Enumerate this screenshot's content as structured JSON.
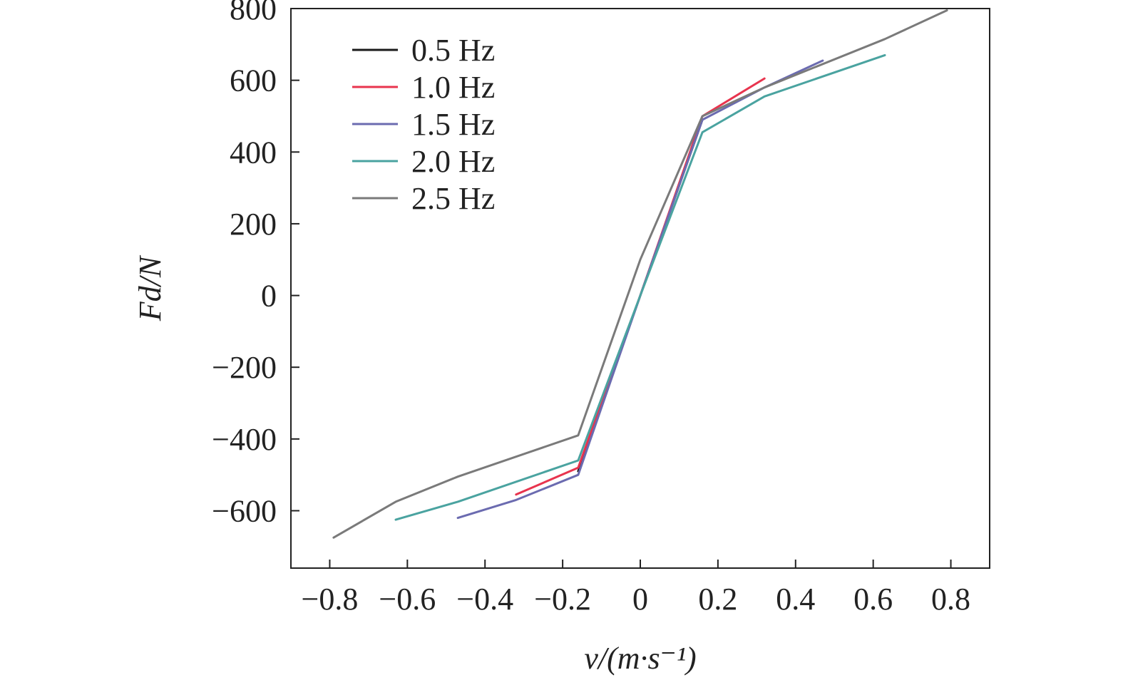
{
  "chart_data": {
    "type": "line",
    "title": "",
    "xlabel": "v/(m·s⁻¹)",
    "ylabel": "Fd/N",
    "xlim": [
      -0.9,
      0.9
    ],
    "ylim": [
      -760,
      800
    ],
    "xticks": [
      -0.8,
      -0.6,
      -0.4,
      -0.2,
      0,
      0.2,
      0.4,
      0.6,
      0.8
    ],
    "xtick_labels": [
      "−0.8",
      "−0.6",
      "−0.4",
      "−0.2",
      "0",
      "0.2",
      "0.4",
      "0.6",
      "0.8"
    ],
    "yticks": [
      -600,
      -400,
      -200,
      0,
      200,
      400,
      600,
      800
    ],
    "ytick_labels": [
      "−600",
      "−400",
      "−200",
      "0",
      "200",
      "400",
      "600",
      "800"
    ],
    "grid": false,
    "legend_position": "top-left",
    "series": [
      {
        "name": "0.5 Hz",
        "color": "#1a1a1a",
        "x": [
          -0.16,
          0.0,
          0.16
        ],
        "y": [
          -490,
          0,
          490
        ]
      },
      {
        "name": "1.0 Hz",
        "color": "#e8344e",
        "x": [
          -0.32,
          -0.16,
          0.0,
          0.16,
          0.32
        ],
        "y": [
          -555,
          -480,
          0,
          500,
          605
        ]
      },
      {
        "name": "1.5 Hz",
        "color": "#6b6bb0",
        "x": [
          -0.47,
          -0.32,
          -0.16,
          0.0,
          0.16,
          0.32,
          0.47
        ],
        "y": [
          -620,
          -570,
          -500,
          0,
          490,
          580,
          655
        ]
      },
      {
        "name": "2.0 Hz",
        "color": "#4aa3a0",
        "x": [
          -0.63,
          -0.47,
          -0.16,
          0.0,
          0.16,
          0.32,
          0.63
        ],
        "y": [
          -625,
          -575,
          -460,
          0,
          455,
          555,
          670
        ]
      },
      {
        "name": "2.5 Hz",
        "color": "#7a7a7a",
        "x": [
          -0.79,
          -0.63,
          -0.47,
          -0.16,
          0.0,
          0.16,
          0.32,
          0.63,
          0.79
        ],
        "y": [
          -675,
          -575,
          -505,
          -390,
          100,
          500,
          580,
          715,
          795
        ]
      }
    ]
  }
}
